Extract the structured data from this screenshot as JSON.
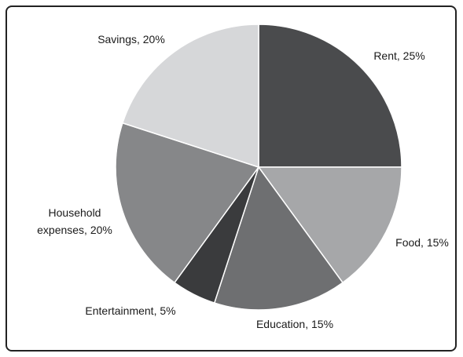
{
  "chart_data": {
    "type": "pie",
    "title": "",
    "slices": [
      {
        "label": "Rent, 25%",
        "value": 25,
        "color": "#4a4b4d"
      },
      {
        "label": "Food, 15%",
        "value": 15,
        "color": "#a6a7a9"
      },
      {
        "label": "Education, 15%",
        "value": 15,
        "color": "#6e6f71"
      },
      {
        "label": "Entertainment, 5%",
        "value": 5,
        "color": "#3a3b3d"
      },
      {
        "label": [
          "Household",
          "expenses, 20%"
        ],
        "value": 20,
        "color": "#868789"
      },
      {
        "label": "Savings, 20%",
        "value": 20,
        "color": "#d6d7d9"
      }
    ],
    "start": "12 o'clock",
    "direction": "clockwise",
    "legend": "none",
    "labels": "outside slices"
  }
}
